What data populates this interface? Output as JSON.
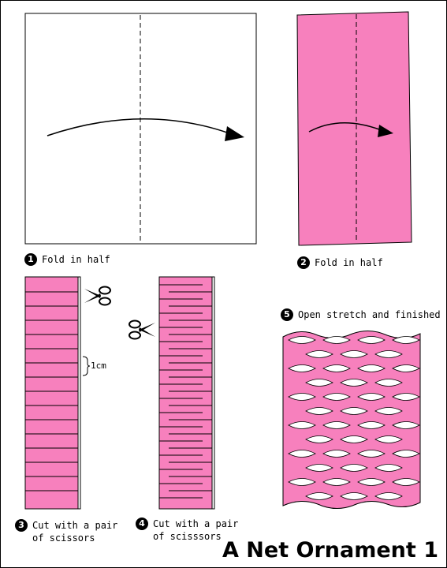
{
  "title": "A Net Ornament 1",
  "colors": {
    "paper_pink": "#f780bd",
    "outline": "#000000",
    "background": "#ffffff"
  },
  "steps": [
    {
      "number": "1",
      "text": "Fold in half"
    },
    {
      "number": "2",
      "text": "Fold in half"
    },
    {
      "number": "3",
      "text": "Cut with a pair\nof scissors"
    },
    {
      "number": "4",
      "text": "Cut with a pair\nof scisssors"
    },
    {
      "number": "5",
      "text": "Open stretch and finished"
    }
  ],
  "annotations": {
    "gap": "1cm"
  },
  "icons": [
    "fold-arrow-icon",
    "scissors-icon"
  ]
}
